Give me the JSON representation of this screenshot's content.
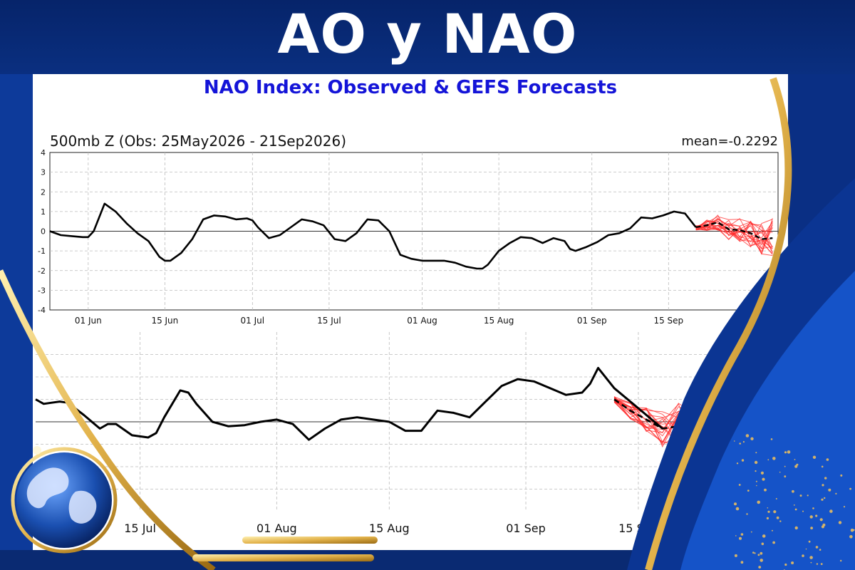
{
  "banner": {
    "title": "AO y NAO"
  },
  "chart_title": "NAO Index: Observed & GEFS Forecasts",
  "panel_label": "500mb Z (Obs: 25May2026 - 21Sep2026)",
  "mean_label": "mean=-0.2292",
  "colors": {
    "banner": "#06246a",
    "title": "#1414d8",
    "observed": "#000000",
    "ensemble": "#ff2a2a",
    "gold": "#e2b24a"
  },
  "chart_data": [
    {
      "type": "line",
      "title": "NAO Index: Observed & GEFS Forecasts",
      "subtitle": "500mb Z (Obs: 25May2026 - 21Sep2026)",
      "annotation": "mean=-0.2292",
      "ylim": [
        -4,
        4
      ],
      "yticks": [
        "4",
        "3",
        "2",
        "1",
        "0",
        "-1",
        "-2",
        "-3",
        "-4"
      ],
      "xticks": [
        "01 Jun",
        "15 Jun",
        "01 Jul",
        "15 Jul",
        "01 Aug",
        "15 Aug",
        "01 Sep",
        "15 Sep"
      ],
      "xtick_days": [
        7,
        21,
        37,
        51,
        68,
        82,
        99,
        113
      ],
      "xlim": [
        0,
        133
      ],
      "grid": true,
      "series": [
        {
          "role": "observed",
          "x": [
            0,
            2,
            4,
            6,
            7,
            8,
            10,
            12,
            14,
            16,
            18,
            20,
            21,
            22,
            24,
            26,
            28,
            30,
            32,
            34,
            36,
            37,
            38,
            40,
            42,
            44,
            46,
            48,
            50,
            52,
            54,
            56,
            58,
            60,
            62,
            64,
            66,
            68,
            70,
            72,
            74,
            76,
            78,
            79,
            80,
            82,
            84,
            86,
            88,
            90,
            92,
            94,
            95,
            96,
            98,
            100,
            102,
            104,
            106,
            108,
            110,
            112,
            114,
            116,
            118
          ],
          "y": [
            0.0,
            -0.2,
            -0.25,
            -0.3,
            -0.3,
            0.0,
            1.4,
            1.0,
            0.4,
            -0.1,
            -0.5,
            -1.3,
            -1.5,
            -1.5,
            -1.1,
            -0.4,
            0.6,
            0.8,
            0.75,
            0.6,
            0.65,
            0.55,
            0.2,
            -0.35,
            -0.2,
            0.2,
            0.6,
            0.5,
            0.3,
            -0.4,
            -0.5,
            -0.1,
            0.6,
            0.55,
            0.0,
            -1.2,
            -1.4,
            -1.5,
            -1.5,
            -1.5,
            -1.6,
            -1.8,
            -1.9,
            -1.9,
            -1.7,
            -1.0,
            -0.6,
            -0.3,
            -0.35,
            -0.6,
            -0.35,
            -0.5,
            -0.9,
            -1.0,
            -0.8,
            -0.55,
            -0.2,
            -0.1,
            0.15,
            0.7,
            0.65,
            0.8,
            1.0,
            0.9,
            0.2
          ]
        },
        {
          "role": "ensemble-mean",
          "x": [
            118,
            120,
            122,
            124,
            126,
            128,
            130,
            132
          ],
          "y": [
            0.2,
            0.3,
            0.45,
            0.1,
            0.05,
            -0.1,
            -0.4,
            -0.35
          ]
        }
      ]
    },
    {
      "type": "line",
      "xticks": [
        "15 Jul",
        "01 Aug",
        "15 Aug",
        "01 Sep",
        "15 Sep"
      ],
      "xtick_days": [
        51,
        68,
        82,
        99,
        113
      ],
      "xlim": [
        38,
        124
      ],
      "grid": true,
      "series": [
        {
          "role": "observed",
          "x": [
            38,
            39,
            40,
            41,
            42,
            44,
            46,
            47,
            48,
            50,
            52,
            53,
            54,
            56,
            57,
            58,
            60,
            62,
            64,
            66,
            68,
            70,
            72,
            74,
            76,
            78,
            80,
            82,
            84,
            86,
            88,
            90,
            92,
            94,
            96,
            98,
            100,
            102,
            104,
            106,
            107,
            108,
            110,
            112,
            114,
            116
          ],
          "y": [
            1.0,
            0.8,
            0.85,
            0.9,
            0.85,
            0.3,
            -0.3,
            -0.1,
            -0.1,
            -0.6,
            -0.7,
            -0.5,
            0.2,
            1.4,
            1.3,
            0.8,
            0.0,
            -0.2,
            -0.15,
            0.0,
            0.1,
            -0.1,
            -0.8,
            -0.3,
            0.1,
            0.2,
            0.1,
            0.0,
            -0.4,
            -0.4,
            0.5,
            0.4,
            0.2,
            0.9,
            1.6,
            1.9,
            1.8,
            1.5,
            1.2,
            1.3,
            1.7,
            2.4,
            1.5,
            0.9,
            0.3,
            -0.3
          ]
        },
        {
          "role": "ensemble-mean",
          "x": [
            110,
            112,
            114,
            116,
            118,
            120
          ],
          "y": [
            1.0,
            0.5,
            0.1,
            -0.3,
            -0.2,
            0.1
          ]
        }
      ]
    }
  ]
}
